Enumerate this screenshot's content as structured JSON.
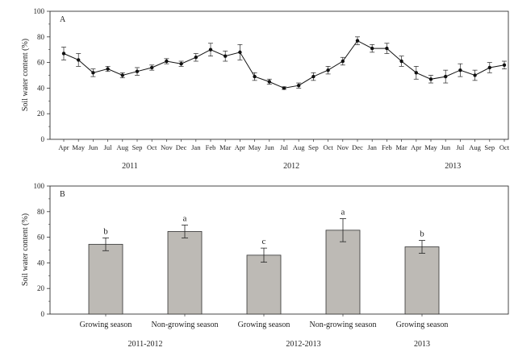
{
  "chart_data": [
    {
      "type": "line",
      "panel_label": "A",
      "ylabel": "Soil water content (%)",
      "ylim": [
        0,
        100
      ],
      "yticks": [
        0,
        20,
        40,
        60,
        80,
        100
      ],
      "x": [
        "Apr",
        "May",
        "Jun",
        "Jul",
        "Aug",
        "Sep",
        "Oct",
        "Nov",
        "Dec",
        "Jan",
        "Feb",
        "Mar",
        "Apr",
        "May",
        "Jun",
        "Jul",
        "Aug",
        "Sep",
        "Oct",
        "Nov",
        "Dec",
        "Jan",
        "Feb",
        "Mar",
        "Apr",
        "May",
        "Jun",
        "Jul",
        "Aug",
        "Sep",
        "Oct"
      ],
      "year_labels": [
        {
          "label": "2011",
          "month_index": 4.5
        },
        {
          "label": "2012",
          "month_index": 15.5
        },
        {
          "label": "2013",
          "month_index": 26.5
        }
      ],
      "series": [
        {
          "values": [
            67,
            62,
            52,
            55,
            50,
            53,
            56,
            61,
            59,
            64,
            70,
            65,
            68,
            49,
            45,
            40,
            42,
            49,
            54,
            61,
            77,
            71,
            71,
            61,
            52,
            47,
            49,
            54,
            50,
            56,
            58
          ],
          "errors": [
            5,
            5,
            3,
            2,
            2,
            3,
            2,
            2,
            2,
            3,
            5,
            4,
            6,
            3,
            2,
            1,
            2,
            3,
            3,
            3,
            3,
            3,
            4,
            4,
            5,
            3,
            5,
            5,
            4,
            4,
            3
          ]
        }
      ],
      "grid": false,
      "marker": "circle"
    },
    {
      "type": "bar",
      "panel_label": "B",
      "ylabel": "Soil water content (%)",
      "ylim": [
        0,
        100
      ],
      "yticks": [
        0,
        20,
        40,
        60,
        80,
        100
      ],
      "categories": [
        "Growing season",
        "Non-growing season",
        "Growing season",
        "Non-growing season",
        "Growing season"
      ],
      "groups": [
        {
          "label": "2011-2012",
          "category_index": 0.5
        },
        {
          "label": "2012-2013",
          "category_index": 2.5
        },
        {
          "label": "2013",
          "category_index": 4
        }
      ],
      "values": [
        54.5,
        64.5,
        46,
        65.5,
        52.5
      ],
      "errors": [
        5,
        5,
        5.5,
        9,
        5
      ],
      "significance": [
        "b",
        "a",
        "c",
        "a",
        "b"
      ],
      "bar_color": "#bdbab5",
      "grid": false
    }
  ]
}
